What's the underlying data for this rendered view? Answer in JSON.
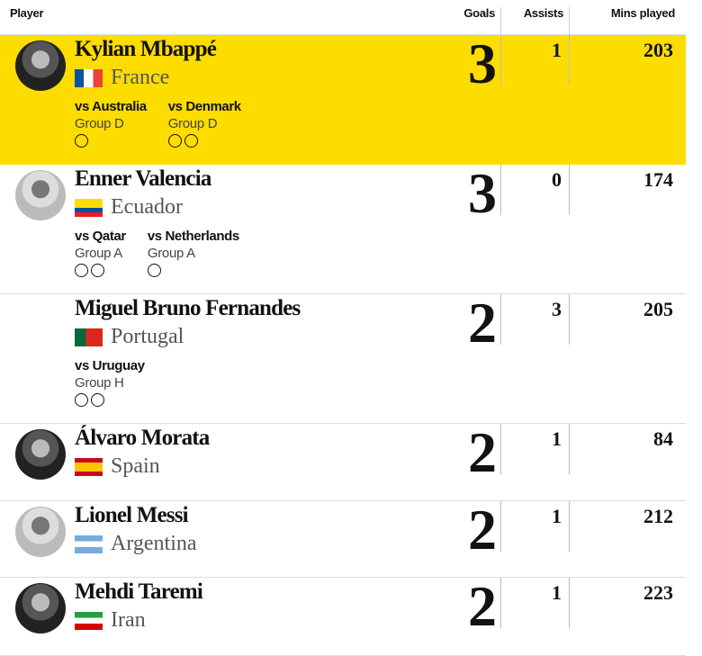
{
  "header": {
    "player": "Player",
    "goals": "Goals",
    "assists": "Assists",
    "mins": "Mins played"
  },
  "highlight_color": "#fddc00",
  "rows": [
    {
      "name": "Kylian Mbappé",
      "country": "France",
      "goals": "3",
      "assists": "1",
      "mins": "203",
      "flag": "france",
      "matches": [
        {
          "opponent": "vs Australia",
          "group": "Group D",
          "goals": 1
        },
        {
          "opponent": "vs Denmark",
          "group": "Group D",
          "goals": 2
        }
      ]
    },
    {
      "name": "Enner Valencia",
      "country": "Ecuador",
      "goals": "3",
      "assists": "0",
      "mins": "174",
      "flag": "ecuador",
      "matches": [
        {
          "opponent": "vs Qatar",
          "group": "Group A",
          "goals": 2
        },
        {
          "opponent": "vs Netherlands",
          "group": "Group A",
          "goals": 1
        }
      ]
    },
    {
      "name": "Miguel Bruno Fernandes",
      "country": "Portugal",
      "goals": "2",
      "assists": "3",
      "mins": "205",
      "flag": "portugal",
      "matches": [
        {
          "opponent": "vs Uruguay",
          "group": "Group H",
          "goals": 2
        }
      ]
    },
    {
      "name": "Álvaro Morata",
      "country": "Spain",
      "goals": "2",
      "assists": "1",
      "mins": "84",
      "flag": "spain"
    },
    {
      "name": "Lionel Messi",
      "country": "Argentina",
      "goals": "2",
      "assists": "1",
      "mins": "212",
      "flag": "argentina"
    },
    {
      "name": "Mehdi Taremi",
      "country": "Iran",
      "goals": "2",
      "assists": "1",
      "mins": "223",
      "flag": "iran"
    }
  ]
}
